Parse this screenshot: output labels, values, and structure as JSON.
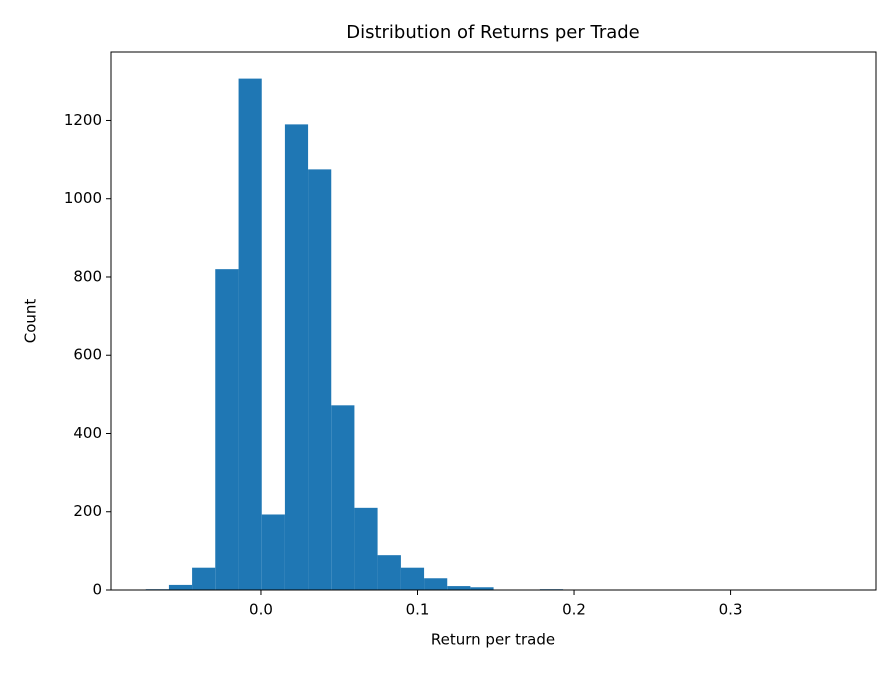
{
  "chart_data": {
    "type": "histogram",
    "title": "Distribution of Returns per Trade",
    "x_label": "Return per trade",
    "y_label": "Count",
    "color": "#1f77b4",
    "bins": [
      -0.0736,
      -0.0588,
      -0.044,
      -0.0292,
      -0.0143,
      0.0005,
      0.0153,
      0.0301,
      0.0449,
      0.0597,
      0.0745,
      0.0894,
      0.1042,
      0.119,
      0.1338,
      0.1486,
      0.1634,
      0.1782,
      0.193,
      0.2078,
      0.2227,
      0.2375,
      0.2523,
      0.2671,
      0.2819,
      0.2967,
      0.3115,
      0.3263,
      0.3412,
      0.356,
      0.3707
    ],
    "values": [
      2,
      13,
      57,
      820,
      1307,
      193,
      1190,
      1075,
      472,
      210,
      89,
      57,
      30,
      10,
      7,
      1,
      0,
      2,
      1,
      1,
      1,
      0,
      1,
      0,
      1,
      0,
      0,
      1,
      0,
      1
    ],
    "xlim": [
      -0.0958,
      0.3929
    ],
    "ylim": [
      0,
      1375
    ],
    "xticks": [
      {
        "value": 0,
        "label": "0.0"
      },
      0.1,
      0.2,
      0.3
    ],
    "yticks": [
      0,
      200,
      400,
      600,
      800,
      1000,
      1200
    ],
    "grid": false
  }
}
